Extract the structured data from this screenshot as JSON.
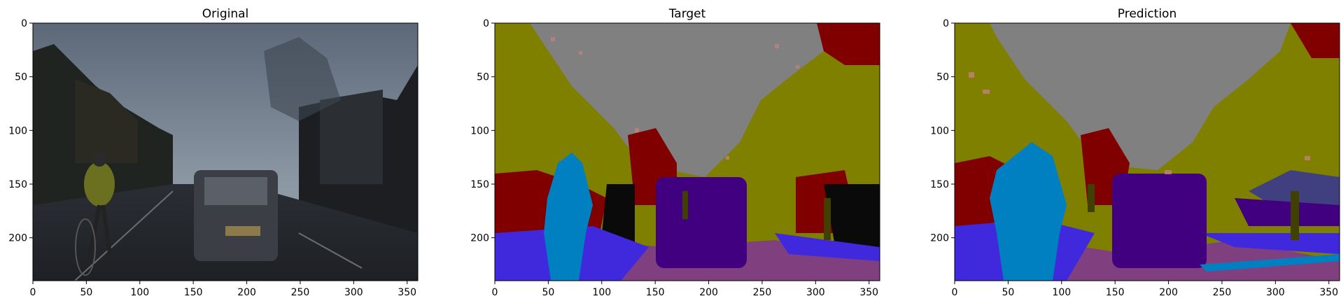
{
  "chart_data": [
    {
      "type": "image",
      "title": "Original",
      "xlim": [
        0,
        360
      ],
      "ylim": [
        240,
        0
      ],
      "xticks": [
        0,
        50,
        100,
        150,
        200,
        250,
        300,
        350
      ],
      "yticks": [
        0,
        50,
        100,
        150,
        200
      ],
      "content": "street-scene-photo"
    },
    {
      "type": "image",
      "title": "Target",
      "xlim": [
        0,
        360
      ],
      "ylim": [
        240,
        0
      ],
      "xticks": [
        0,
        50,
        100,
        150,
        200,
        250,
        300,
        350
      ],
      "yticks": [
        0,
        50,
        100,
        150,
        200
      ],
      "content": "segmentation-mask"
    },
    {
      "type": "image",
      "title": "Prediction",
      "xlim": [
        0,
        360
      ],
      "ylim": [
        240,
        0
      ],
      "xticks": [
        0,
        50,
        100,
        150,
        200,
        250,
        300,
        350
      ],
      "yticks": [
        0,
        50,
        100,
        150,
        200
      ],
      "content": "segmentation-mask"
    }
  ],
  "palette": {
    "sky": "#808080",
    "tree": "#808000",
    "building": "#800000",
    "road": "#804080",
    "sidewalk": "#4028dc",
    "car": "#400080",
    "pedestrian": "#0080c0",
    "pole": "#404000",
    "void": "#0a0a0a",
    "fence": "#c08080",
    "bus": "#404080"
  }
}
